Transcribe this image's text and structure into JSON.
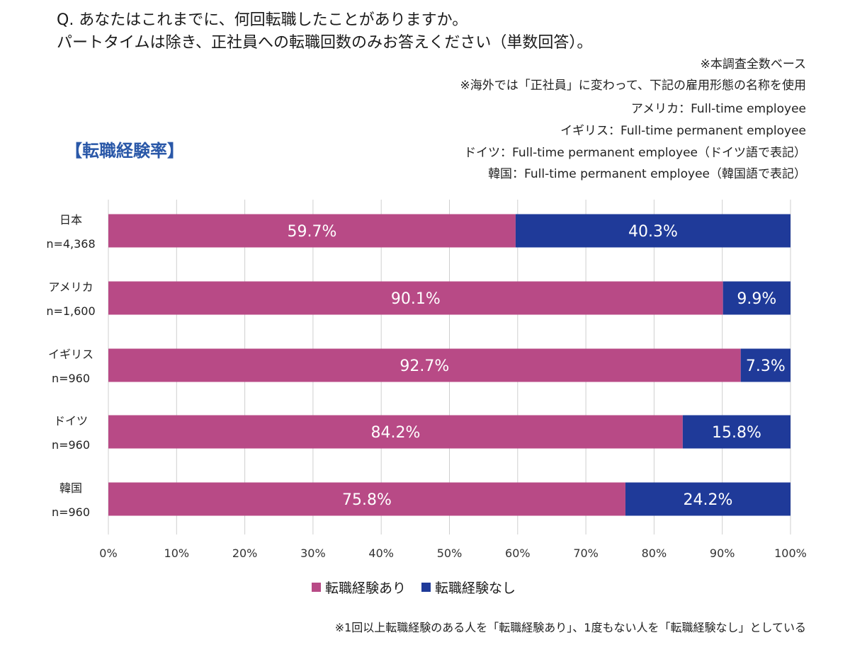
{
  "question": {
    "line1": "Q. あなたはこれまでに、何回転職したことがありますか。",
    "line2": "パートタイムは除き、正社員への転職回数のみお答えください（単数回答）。"
  },
  "notes": [
    "※本調査全数ベース",
    "※海外では「正社員」に変わって、下記の雇用形態の名称を使用",
    "アメリカ：Full-time employee",
    "イギリス：Full-time permanent employee",
    "ドイツ：Full-time permanent employee（ドイツ語で表記）",
    "韓国：Full-time permanent employee（韓国語で表記）"
  ],
  "section_title": "【転職経験率】",
  "footnote": "※1回以上転職経験のある人を「転職経験あり」、1度もない人を「転職経験なし」としている",
  "colors": {
    "yes": "#b84a86",
    "no": "#1f3a99"
  },
  "chart_data": {
    "type": "bar",
    "orientation": "horizontal",
    "stacked": true,
    "categories": [
      {
        "name": "日本",
        "n": "n=4,368"
      },
      {
        "name": "アメリカ",
        "n": "n=1,600"
      },
      {
        "name": "イギリス",
        "n": "n=960"
      },
      {
        "name": "ドイツ",
        "n": "n=960"
      },
      {
        "name": "韓国",
        "n": "n=960"
      }
    ],
    "series": [
      {
        "name": "転職経験あり",
        "values": [
          59.7,
          90.1,
          92.7,
          84.2,
          75.8
        ],
        "labels": [
          "59.7%",
          "90.1%",
          "92.7%",
          "84.2%",
          "75.8%"
        ]
      },
      {
        "name": "転職経験なし",
        "values": [
          40.3,
          9.9,
          7.3,
          15.8,
          24.2
        ],
        "labels": [
          "40.3%",
          "9.9%",
          "7.3%",
          "15.8%",
          "24.2%"
        ]
      }
    ],
    "xlim": [
      0,
      100
    ],
    "xticks": [
      "0%",
      "10%",
      "20%",
      "30%",
      "40%",
      "50%",
      "60%",
      "70%",
      "80%",
      "90%",
      "100%"
    ],
    "grid": true,
    "legend": "bottom"
  }
}
